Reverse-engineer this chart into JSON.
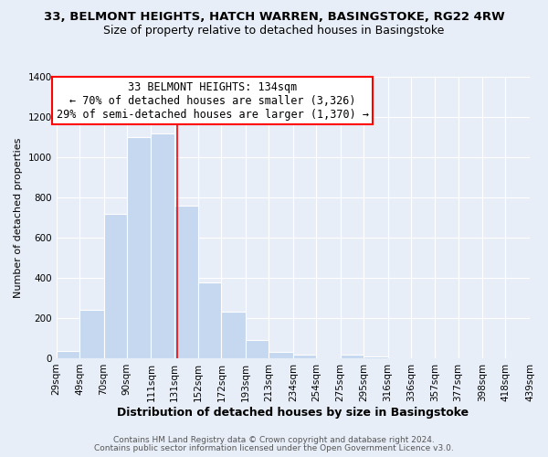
{
  "title": "33, BELMONT HEIGHTS, HATCH WARREN, BASINGSTOKE, RG22 4RW",
  "subtitle": "Size of property relative to detached houses in Basingstoke",
  "xlabel": "Distribution of detached houses by size in Basingstoke",
  "ylabel": "Number of detached properties",
  "bar_left_edges": [
    29,
    49,
    70,
    90,
    111,
    131,
    152,
    172,
    193,
    213,
    234,
    254,
    275,
    295,
    316,
    336,
    357,
    377,
    398,
    418
  ],
  "bar_heights": [
    35,
    240,
    720,
    1100,
    1120,
    760,
    375,
    230,
    90,
    30,
    20,
    0,
    20,
    10,
    0,
    0,
    0,
    0,
    0,
    0
  ],
  "bar_widths": [
    20,
    21,
    20,
    21,
    20,
    21,
    20,
    21,
    20,
    21,
    20,
    21,
    20,
    21,
    21,
    21,
    20,
    21,
    20,
    21
  ],
  "tick_labels": [
    "29sqm",
    "49sqm",
    "70sqm",
    "90sqm",
    "111sqm",
    "131sqm",
    "152sqm",
    "172sqm",
    "193sqm",
    "213sqm",
    "234sqm",
    "254sqm",
    "275sqm",
    "295sqm",
    "316sqm",
    "336sqm",
    "357sqm",
    "377sqm",
    "398sqm",
    "418sqm",
    "439sqm"
  ],
  "bar_color": "#c5d8f0",
  "property_line_x": 134,
  "property_line_color": "red",
  "annotation_title": "33 BELMONT HEIGHTS: 134sqm",
  "annotation_line1": "← 70% of detached houses are smaller (3,326)",
  "annotation_line2": "29% of semi-detached houses are larger (1,370) →",
  "annotation_box_color": "white",
  "annotation_box_edge": "red",
  "ylim": [
    0,
    1400
  ],
  "yticks": [
    0,
    200,
    400,
    600,
    800,
    1000,
    1200,
    1400
  ],
  "footer1": "Contains HM Land Registry data © Crown copyright and database right 2024.",
  "footer2": "Contains public sector information licensed under the Open Government Licence v3.0.",
  "background_color": "#e8eef8",
  "grid_color": "#ffffff",
  "title_fontsize": 9.5,
  "subtitle_fontsize": 9,
  "xlabel_fontsize": 9,
  "ylabel_fontsize": 8,
  "tick_fontsize": 7.5,
  "annotation_fontsize": 8.5,
  "footer_fontsize": 6.5
}
